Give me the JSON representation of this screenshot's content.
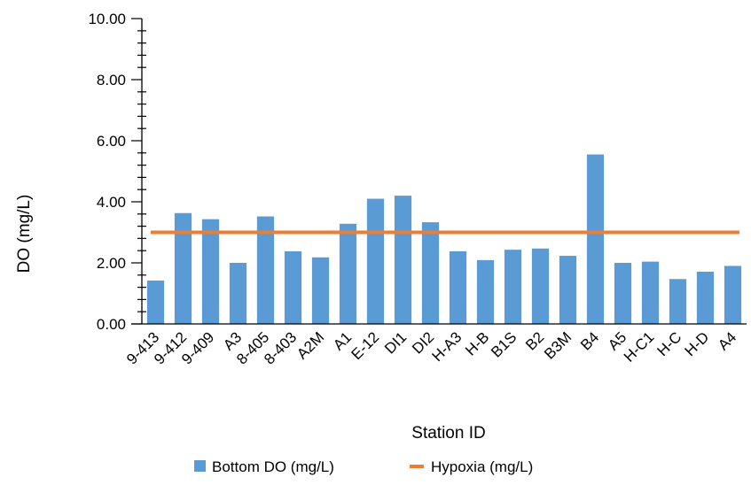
{
  "chart_data": {
    "type": "bar",
    "title": "",
    "xlabel": "Station ID",
    "ylabel": "DO (mg/L)",
    "ylim": [
      0,
      10
    ],
    "yticks": [
      "0.00",
      "2.00",
      "4.00",
      "6.00",
      "8.00",
      "10.00"
    ],
    "categories": [
      "9-413",
      "9-412",
      "9-409",
      "A3",
      "8-405",
      "8-403",
      "A2M",
      "A1",
      "E-12",
      "DI1",
      "DI2",
      "H-A3",
      "H-B",
      "B1S",
      "B2",
      "B3M",
      "B4",
      "A5",
      "H-C1",
      "H-C",
      "H-D",
      "A4"
    ],
    "series": [
      {
        "name": "Bottom DO (mg/L)",
        "kind": "bar",
        "color": "#5B9BD5",
        "values": [
          1.42,
          3.63,
          3.43,
          2.0,
          3.52,
          2.38,
          2.18,
          3.28,
          4.1,
          4.2,
          3.33,
          2.38,
          2.09,
          2.43,
          2.47,
          2.23,
          5.55,
          2.0,
          2.04,
          1.47,
          1.71,
          1.9
        ]
      },
      {
        "name": "Hypoxia (mg/L)",
        "kind": "line",
        "color": "#ED7D31",
        "values": [
          3,
          3,
          3,
          3,
          3,
          3,
          3,
          3,
          3,
          3,
          3,
          3,
          3,
          3,
          3,
          3,
          3,
          3,
          3,
          3,
          3,
          3
        ]
      }
    ],
    "grid": false,
    "legend": "bottom"
  }
}
